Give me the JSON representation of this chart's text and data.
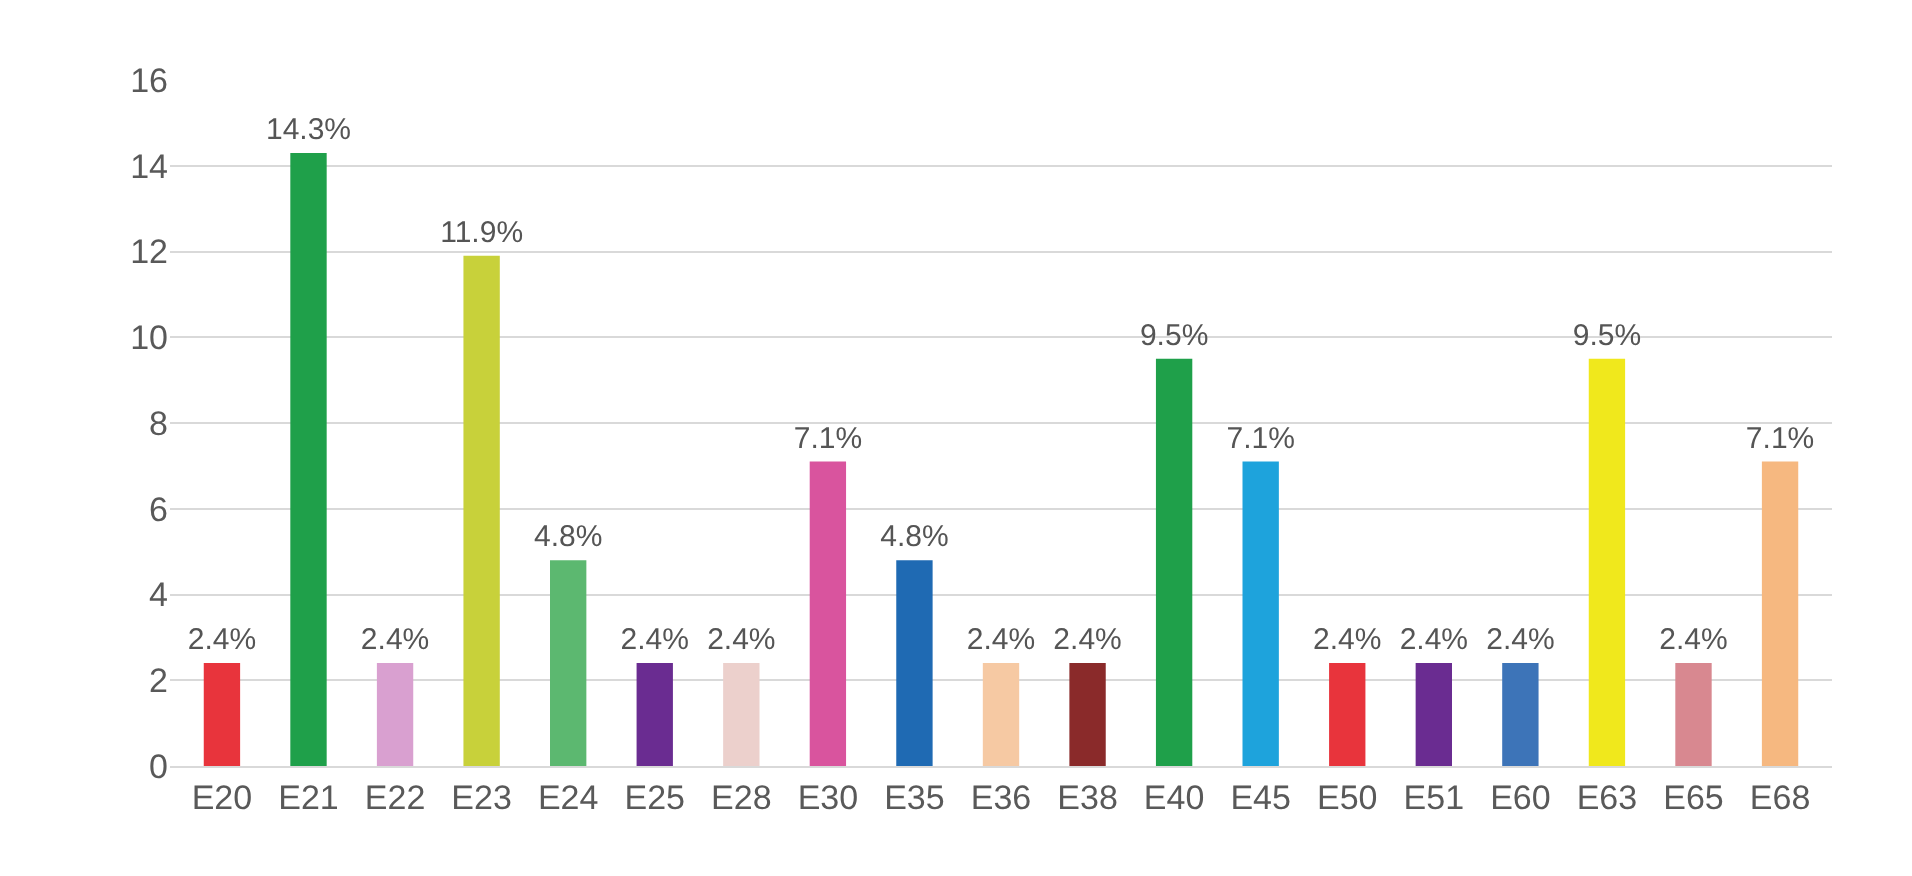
{
  "chart_data": {
    "type": "bar",
    "categories": [
      "E20",
      "E21",
      "E22",
      "E23",
      "E24",
      "E25",
      "E28",
      "E30",
      "E35",
      "E36",
      "E38",
      "E40",
      "E45",
      "E50",
      "E51",
      "E60",
      "E63",
      "E65",
      "E68"
    ],
    "values": [
      2.4,
      14.3,
      2.4,
      11.9,
      4.8,
      2.4,
      2.4,
      7.1,
      4.8,
      2.4,
      2.4,
      9.5,
      7.1,
      2.4,
      2.4,
      2.4,
      9.5,
      2.4,
      7.1
    ],
    "value_labels": [
      "2.4%",
      "14.3%",
      "2.4%",
      "11.9%",
      "4.8%",
      "2.4%",
      "2.4%",
      "7.1%",
      "4.8%",
      "2.4%",
      "2.4%",
      "9.5%",
      "7.1%",
      "2.4%",
      "2.4%",
      "2.4%",
      "9.5%",
      "2.4%",
      "7.1%"
    ],
    "colors": [
      "#e8343c",
      "#1fa04a",
      "#d9a0d0",
      "#c8d13a",
      "#5cb870",
      "#6a2c91",
      "#ecd0cc",
      "#d9549e",
      "#1f6ab3",
      "#f6c9a3",
      "#8a2a2a",
      "#1fa04a",
      "#1ea3dc",
      "#e8343c",
      "#6a2c91",
      "#3d74b8",
      "#f0e81c",
      "#d88890",
      "#f6b880"
    ],
    "ylim": [
      0,
      16
    ],
    "yticks": [
      0,
      2,
      4,
      6,
      8,
      10,
      12,
      14,
      16
    ],
    "grid": "y"
  }
}
